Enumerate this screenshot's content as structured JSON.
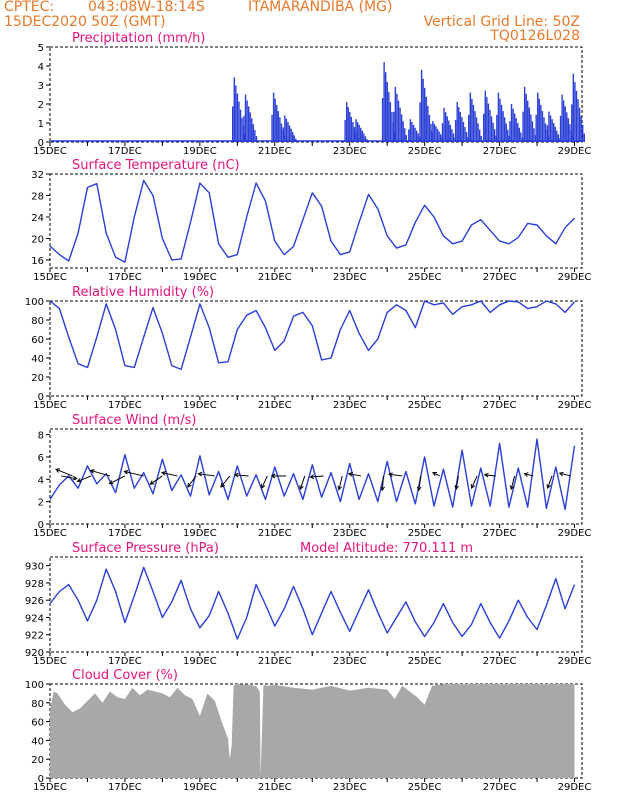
{
  "header": {
    "source": "CPTEC:",
    "coords": "043:08W-18:14S",
    "location": "ITAMARANDIBA (MG)",
    "run": "15DEC2020 50Z (GMT)",
    "grid_note": "Vertical Grid Line: 50Z",
    "code": "TQ0126L028"
  },
  "colors": {
    "header": "#e8782a",
    "title": "#e6137e",
    "line": "#2a3fd6",
    "bar": "#2a3fd6",
    "cloud": "#a8a8a8"
  },
  "chart_data": [
    {
      "id": "precip",
      "type": "bar",
      "title": "Precipitation (mm/h)",
      "xlabels": [
        "15DEC",
        "17DEC",
        "19DEC",
        "21DEC",
        "23DEC",
        "25DEC",
        "27DEC",
        "29DEC"
      ],
      "ylim": [
        0,
        5
      ],
      "yticks": [
        0,
        1,
        2,
        3,
        4,
        5
      ],
      "events": [
        {
          "x": 4.9,
          "peak": 3.4
        },
        {
          "x": 5.2,
          "peak": 2.5
        },
        {
          "x": 5.95,
          "peak": 2.6
        },
        {
          "x": 6.25,
          "peak": 1.4
        },
        {
          "x": 7.9,
          "peak": 2.1
        },
        {
          "x": 8.15,
          "peak": 1.2
        },
        {
          "x": 8.9,
          "peak": 4.2
        },
        {
          "x": 9.2,
          "peak": 2.9
        },
        {
          "x": 9.6,
          "peak": 1.2
        },
        {
          "x": 9.9,
          "peak": 3.8
        },
        {
          "x": 10.2,
          "peak": 1.1
        },
        {
          "x": 10.5,
          "peak": 1.8
        },
        {
          "x": 10.85,
          "peak": 2.1
        },
        {
          "x": 11.2,
          "peak": 2.6
        },
        {
          "x": 11.6,
          "peak": 2.7
        },
        {
          "x": 11.95,
          "peak": 2.6
        },
        {
          "x": 12.3,
          "peak": 2.0
        },
        {
          "x": 12.65,
          "peak": 2.9
        },
        {
          "x": 13.0,
          "peak": 2.6
        },
        {
          "x": 13.3,
          "peak": 1.6
        },
        {
          "x": 13.65,
          "peak": 2.5
        },
        {
          "x": 13.95,
          "peak": 3.6
        }
      ]
    },
    {
      "id": "temp",
      "type": "line",
      "title": "Surface Temperature (nC)",
      "xlabels": [
        "15DEC",
        "17DEC",
        "19DEC",
        "21DEC",
        "23DEC",
        "25DEC",
        "27DEC",
        "29DEC"
      ],
      "ylim": [
        14.5,
        32
      ],
      "yticks": [
        16,
        20,
        24,
        28,
        32
      ],
      "x": [
        0,
        0.25,
        0.5,
        0.75,
        1,
        1.25,
        1.5,
        1.75,
        2,
        2.25,
        2.5,
        2.75,
        3,
        3.25,
        3.5,
        3.75,
        4,
        4.25,
        4.5,
        4.75,
        5,
        5.25,
        5.5,
        5.75,
        6,
        6.25,
        6.5,
        6.75,
        7,
        7.25,
        7.5,
        7.75,
        8,
        8.25,
        8.5,
        8.75,
        9,
        9.25,
        9.5,
        9.75,
        10,
        10.25,
        10.5,
        10.75,
        11,
        11.25,
        11.5,
        11.75,
        12,
        12.25,
        12.5,
        12.75,
        13,
        13.25,
        13.5,
        13.75,
        14
      ],
      "y": [
        18.6,
        17.0,
        15.8,
        21.0,
        29.5,
        30.2,
        21.0,
        16.5,
        15.6,
        24.0,
        30.8,
        28.0,
        20.0,
        16.0,
        16.2,
        23.0,
        30.3,
        28.5,
        19.0,
        16.5,
        17.0,
        24.0,
        30.3,
        27.0,
        19.5,
        17.0,
        18.5,
        23.5,
        28.5,
        26.0,
        19.5,
        17.0,
        17.5,
        23.0,
        28.2,
        25.5,
        20.5,
        18.2,
        18.8,
        23.0,
        26.2,
        24.0,
        20.5,
        19.0,
        19.5,
        22.5,
        23.5,
        21.5,
        19.5,
        19.0,
        20.2,
        22.8,
        22.5,
        20.5,
        19.0,
        22.0,
        23.8
      ]
    },
    {
      "id": "rh",
      "type": "line",
      "title": "Relative Humidity (%)",
      "xlabels": [
        "15DEC",
        "17DEC",
        "19DEC",
        "21DEC",
        "23DEC",
        "25DEC",
        "27DEC",
        "29DEC"
      ],
      "ylim": [
        0,
        100
      ],
      "yticks": [
        0,
        20,
        40,
        60,
        80,
        100
      ],
      "x": [
        0,
        0.25,
        0.5,
        0.75,
        1,
        1.25,
        1.5,
        1.75,
        2,
        2.25,
        2.5,
        2.75,
        3,
        3.25,
        3.5,
        3.75,
        4,
        4.25,
        4.5,
        4.75,
        5,
        5.25,
        5.5,
        5.75,
        6,
        6.25,
        6.5,
        6.75,
        7,
        7.25,
        7.5,
        7.75,
        8,
        8.25,
        8.5,
        8.75,
        9,
        9.25,
        9.5,
        9.75,
        10,
        10.25,
        10.5,
        10.75,
        11,
        11.25,
        11.5,
        11.75,
        12,
        12.25,
        12.5,
        12.75,
        13,
        13.25,
        13.5,
        13.75,
        14
      ],
      "y": [
        100,
        92,
        62,
        34,
        30,
        62,
        97,
        70,
        32,
        30,
        62,
        93,
        66,
        32,
        28,
        62,
        97,
        72,
        35,
        36,
        70,
        85,
        90,
        72,
        48,
        58,
        84,
        88,
        74,
        38,
        40,
        70,
        90,
        66,
        48,
        60,
        88,
        96,
        90,
        72,
        100,
        96,
        98,
        86,
        94,
        96,
        100,
        88,
        96,
        100,
        99,
        92,
        94,
        100,
        97,
        88,
        99
      ]
    },
    {
      "id": "wind",
      "type": "line",
      "title": "Surface Wind (m/s)",
      "xlabels": [
        "15DEC",
        "17DEC",
        "19DEC",
        "21DEC",
        "23DEC",
        "25DEC",
        "27DEC",
        "29DEC"
      ],
      "ylim": [
        0,
        8.5
      ],
      "yticks": [
        0,
        2,
        4,
        6,
        8
      ],
      "x": [
        0,
        0.25,
        0.5,
        0.75,
        1,
        1.25,
        1.5,
        1.75,
        2,
        2.25,
        2.5,
        2.75,
        3,
        3.25,
        3.5,
        3.75,
        4,
        4.25,
        4.5,
        4.75,
        5,
        5.25,
        5.5,
        5.75,
        6,
        6.25,
        6.5,
        6.75,
        7,
        7.25,
        7.5,
        7.75,
        8,
        8.25,
        8.5,
        8.75,
        9,
        9.25,
        9.5,
        9.75,
        10,
        10.25,
        10.5,
        10.75,
        11,
        11.25,
        11.5,
        11.75,
        12,
        12.25,
        12.5,
        12.75,
        13,
        13.25,
        13.5,
        13.75,
        14
      ],
      "y": [
        2.2,
        3.5,
        4.3,
        3.2,
        5.2,
        3.6,
        4.5,
        2.8,
        6.2,
        3.2,
        4.6,
        2.7,
        5.8,
        3.0,
        4.4,
        2.5,
        6.1,
        2.6,
        4.7,
        2.2,
        5.2,
        2.5,
        4.4,
        2.2,
        5.1,
        2.5,
        4.5,
        2.2,
        5.3,
        2.4,
        4.6,
        2.0,
        5.4,
        2.2,
        4.5,
        2.0,
        5.6,
        2.0,
        4.7,
        1.8,
        6.0,
        1.6,
        4.9,
        1.5,
        6.6,
        1.6,
        5.0,
        1.6,
        7.2,
        1.5,
        5.0,
        1.5,
        7.6,
        1.4,
        5.1,
        1.3,
        7.0
      ],
      "barbs": [
        {
          "x": 0.3,
          "u": 2.8,
          "v": -0.5
        },
        {
          "x": 0.6,
          "u": -3.0,
          "v": 1.2
        },
        {
          "x": 1.1,
          "u": -2.5,
          "v": -1.0
        },
        {
          "x": 1.6,
          "u": -3.5,
          "v": 1.0
        },
        {
          "x": 2.0,
          "u": -2.8,
          "v": -1.4
        },
        {
          "x": 2.5,
          "u": -3.5,
          "v": 0.8
        },
        {
          "x": 3.0,
          "u": -2.2,
          "v": -1.5
        },
        {
          "x": 3.4,
          "u": -2.8,
          "v": 0.6
        },
        {
          "x": 3.9,
          "u": -1.5,
          "v": -2.0
        },
        {
          "x": 4.4,
          "u": -3.0,
          "v": 0.4
        },
        {
          "x": 4.8,
          "u": -1.6,
          "v": -2.0
        },
        {
          "x": 5.3,
          "u": -2.5,
          "v": 0.2
        },
        {
          "x": 5.8,
          "u": -1.0,
          "v": -2.2
        },
        {
          "x": 6.3,
          "u": -2.6,
          "v": 0.0
        },
        {
          "x": 6.8,
          "u": -0.8,
          "v": -2.4
        },
        {
          "x": 7.3,
          "u": -2.4,
          "v": -0.2
        },
        {
          "x": 7.8,
          "u": -0.6,
          "v": -2.5
        },
        {
          "x": 8.3,
          "u": -2.2,
          "v": 0.4
        },
        {
          "x": 8.9,
          "u": -0.2,
          "v": -2.6
        },
        {
          "x": 9.4,
          "u": -2.4,
          "v": 0.3
        },
        {
          "x": 9.9,
          "u": -0.4,
          "v": -2.6
        },
        {
          "x": 10.4,
          "u": -1.2,
          "v": 0.6
        },
        {
          "x": 10.9,
          "u": -0.4,
          "v": -2.4
        },
        {
          "x": 11.4,
          "u": -1.0,
          "v": -2.2
        },
        {
          "x": 11.9,
          "u": -2.0,
          "v": 0.2
        },
        {
          "x": 12.4,
          "u": -0.6,
          "v": -2.4
        },
        {
          "x": 12.9,
          "u": -1.6,
          "v": 0.4
        },
        {
          "x": 13.4,
          "u": -0.8,
          "v": -2.2
        },
        {
          "x": 13.9,
          "u": -2.0,
          "v": 0.5
        }
      ]
    },
    {
      "id": "pres",
      "type": "line",
      "title": "Surface Pressure (hPa)",
      "subtitle": "Model Altitude: 770.111  m",
      "xlabels": [
        "15DEC",
        "17DEC",
        "19DEC",
        "21DEC",
        "23DEC",
        "25DEC",
        "27DEC",
        "29DEC"
      ],
      "ylim": [
        920,
        931
      ],
      "yticks": [
        920,
        922,
        924,
        926,
        928,
        930
      ],
      "x": [
        0,
        0.25,
        0.5,
        0.75,
        1,
        1.25,
        1.5,
        1.75,
        2,
        2.25,
        2.5,
        2.75,
        3,
        3.25,
        3.5,
        3.75,
        4,
        4.25,
        4.5,
        4.75,
        5,
        5.25,
        5.5,
        5.75,
        6,
        6.25,
        6.5,
        6.75,
        7,
        7.25,
        7.5,
        7.75,
        8,
        8.25,
        8.5,
        8.75,
        9,
        9.25,
        9.5,
        9.75,
        10,
        10.25,
        10.5,
        10.75,
        11,
        11.25,
        11.5,
        11.75,
        12,
        12.25,
        12.5,
        12.75,
        13,
        13.25,
        13.5,
        13.75,
        14
      ],
      "y": [
        925.6,
        927.0,
        927.8,
        926.0,
        923.6,
        926.0,
        929.6,
        927.0,
        923.4,
        926.5,
        929.8,
        927.0,
        924.0,
        925.8,
        928.3,
        925.0,
        922.8,
        924.2,
        927.0,
        924.5,
        921.5,
        924.0,
        927.8,
        925.5,
        923.0,
        925.0,
        927.6,
        925.0,
        922.0,
        924.5,
        927.0,
        924.6,
        922.4,
        924.8,
        927.2,
        924.6,
        922.2,
        924.0,
        925.8,
        923.5,
        921.8,
        923.4,
        925.6,
        923.4,
        921.8,
        923.2,
        925.6,
        923.4,
        921.6,
        923.6,
        926.0,
        924.0,
        922.6,
        925.4,
        928.5,
        925.0,
        927.8
      ]
    },
    {
      "id": "cloud",
      "type": "area",
      "title": "Cloud Cover (%)",
      "xlabels": [
        "15DEC",
        "17DEC",
        "19DEC",
        "21DEC",
        "23DEC",
        "25DEC",
        "27DEC",
        "29DEC"
      ],
      "ylim": [
        0,
        100
      ],
      "yticks": [
        0,
        20,
        40,
        60,
        80,
        100
      ],
      "x": [
        0,
        0.1,
        0.2,
        0.4,
        0.6,
        0.8,
        1.0,
        1.2,
        1.4,
        1.6,
        1.8,
        2.0,
        2.2,
        2.4,
        2.6,
        2.8,
        3.0,
        3.2,
        3.4,
        3.6,
        3.8,
        4.0,
        4.2,
        4.4,
        4.6,
        4.75,
        4.8,
        4.85,
        4.9,
        4.95,
        5.0,
        5.3,
        5.5,
        5.6,
        5.62,
        5.7,
        5.8,
        6.0,
        6.5,
        7.0,
        7.5,
        8.0,
        8.5,
        9.0,
        9.2,
        9.4,
        9.6,
        9.8,
        10.0,
        10.2,
        10.5,
        11,
        12,
        13,
        14
      ],
      "y": [
        72,
        92,
        90,
        78,
        70,
        74,
        82,
        90,
        80,
        92,
        86,
        84,
        96,
        88,
        94,
        92,
        90,
        86,
        96,
        88,
        84,
        66,
        90,
        82,
        58,
        42,
        20,
        35,
        98,
        100,
        100,
        99,
        98,
        92,
        2,
        99,
        98,
        99,
        96,
        94,
        98,
        93,
        96,
        94,
        84,
        98,
        92,
        86,
        78,
        98,
        100,
        100,
        100,
        100,
        100
      ]
    }
  ]
}
